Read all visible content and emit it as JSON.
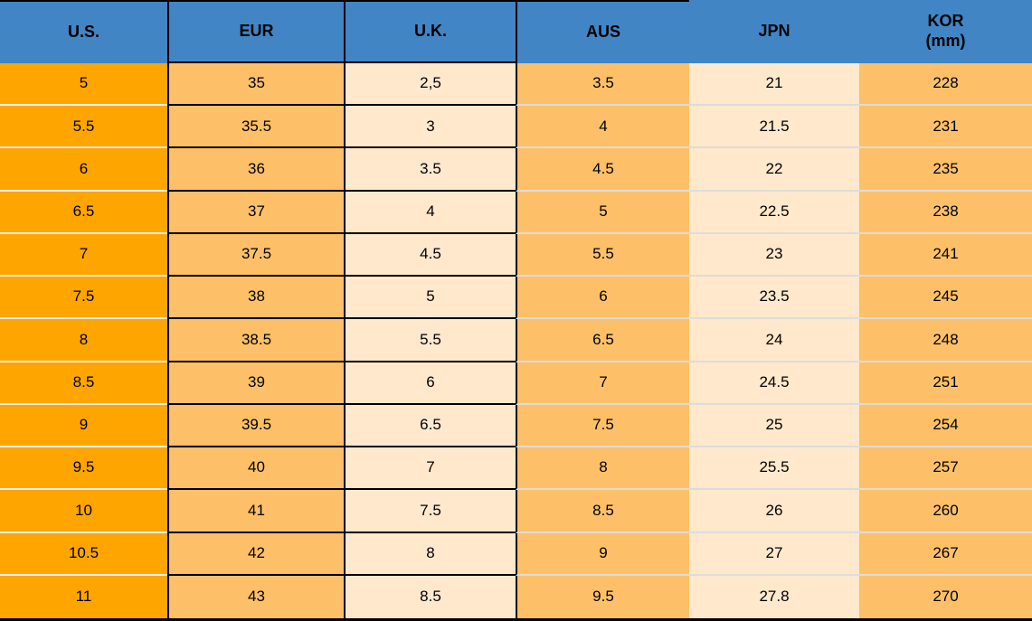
{
  "headers": [
    {
      "label": "U.S."
    },
    {
      "label": "EUR"
    },
    {
      "label": "U.K."
    },
    {
      "label": "AUS"
    },
    {
      "label": "JPN"
    },
    {
      "label": "KOR",
      "sub": "(mm)"
    }
  ],
  "chart_data": {
    "type": "table",
    "columns": [
      "U.S.",
      "EUR",
      "U.K.",
      "AUS",
      "JPN",
      "KOR (mm)"
    ],
    "rows": [
      [
        "5",
        "35",
        "2,5",
        "3.5",
        "21",
        "228"
      ],
      [
        "5.5",
        "35.5",
        "3",
        "4",
        "21.5",
        "231"
      ],
      [
        "6",
        "36",
        "3.5",
        "4.5",
        "22",
        "235"
      ],
      [
        "6.5",
        "37",
        "4",
        "5",
        "22.5",
        "238"
      ],
      [
        "7",
        "37.5",
        "4.5",
        "5.5",
        "23",
        "241"
      ],
      [
        "7.5",
        "38",
        "5",
        "6",
        "23.5",
        "245"
      ],
      [
        "8",
        "38.5",
        "5.5",
        "6.5",
        "24",
        "248"
      ],
      [
        "8.5",
        "39",
        "6",
        "7",
        "24.5",
        "251"
      ],
      [
        "9",
        "39.5",
        "6.5",
        "7.5",
        "25",
        "254"
      ],
      [
        "9.5",
        "40",
        "7",
        "8",
        "25.5",
        "257"
      ],
      [
        "10",
        "41",
        "7.5",
        "8.5",
        "26",
        "260"
      ],
      [
        "10.5",
        "42",
        "8",
        "9",
        "27",
        "267"
      ],
      [
        "11",
        "43",
        "8.5",
        "9.5",
        "27.8",
        "270"
      ]
    ]
  },
  "colors": {
    "header_bg": "#4285C4",
    "us_column_bg": "#FFA500",
    "orange_cell_bg": "#FDC068",
    "cream_cell_bg": "#FFE8CC",
    "grid_black": "#000000",
    "light_separator": "#DCDCDC",
    "light_separator_us": "#EFEFEF"
  }
}
